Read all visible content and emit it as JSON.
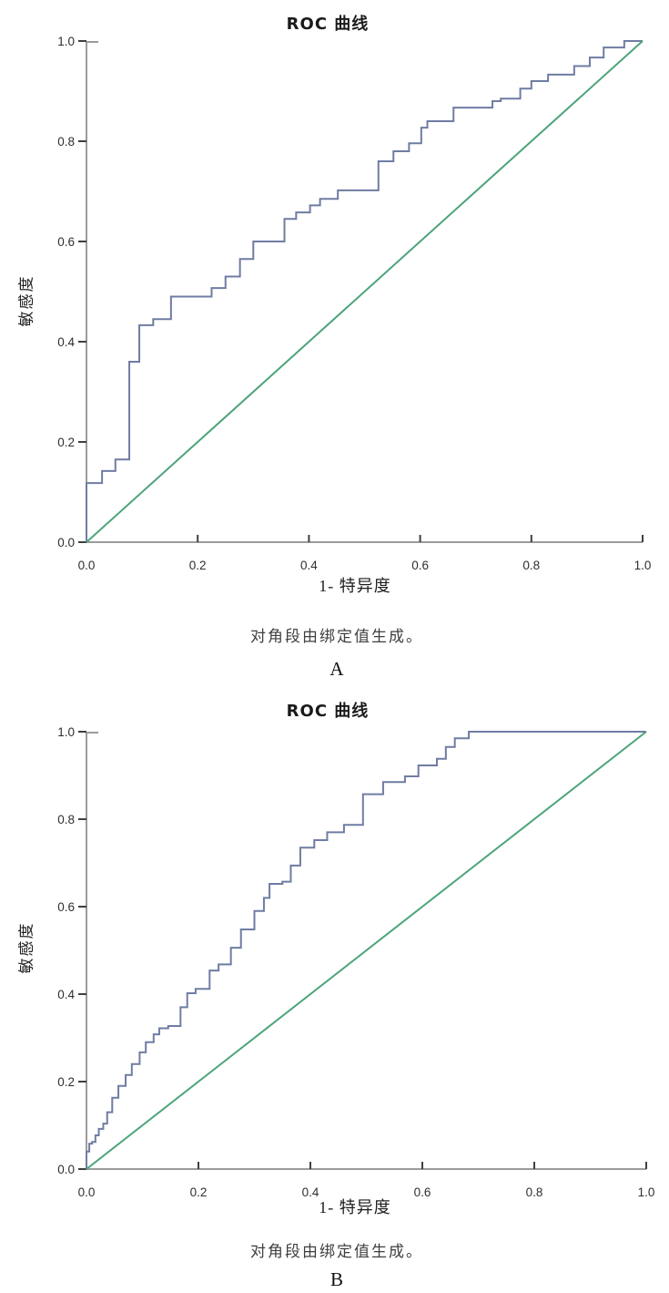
{
  "page": {
    "background": "#ffffff"
  },
  "chart_data": [
    {
      "panel_label": "A",
      "type": "line",
      "title": "ROC 曲线",
      "xlabel": "1- 特异度",
      "ylabel": "敏感度",
      "footnote": "对角段由绑定值生成。",
      "xlim": [
        0,
        1
      ],
      "ylim": [
        0,
        1
      ],
      "grid": false,
      "legend": "none",
      "axis_color": "#9b9b9b",
      "tick_color": "#3f3f3f",
      "tick_label_color": "#2e2e2e",
      "xticks": [
        "0.0",
        "0.2",
        "0.4",
        "0.6",
        "0.8",
        "1.0"
      ],
      "yticks": [
        "0.0",
        "0.2",
        "0.4",
        "0.6",
        "0.8",
        "1.0"
      ],
      "series": [
        {
          "name": "ROC curve",
          "color": "#6f7ca3",
          "style": "step",
          "points": [
            [
              0.0,
              0.0
            ],
            [
              0.005,
              0.118
            ],
            [
              0.028,
              0.118
            ],
            [
              0.028,
              0.142
            ],
            [
              0.052,
              0.142
            ],
            [
              0.052,
              0.165
            ],
            [
              0.077,
              0.165
            ],
            [
              0.077,
              0.36
            ],
            [
              0.095,
              0.36
            ],
            [
              0.095,
              0.433
            ],
            [
              0.12,
              0.433
            ],
            [
              0.12,
              0.445
            ],
            [
              0.152,
              0.445
            ],
            [
              0.152,
              0.49
            ],
            [
              0.225,
              0.49
            ],
            [
              0.225,
              0.507
            ],
            [
              0.25,
              0.507
            ],
            [
              0.25,
              0.53
            ],
            [
              0.276,
              0.53
            ],
            [
              0.276,
              0.565
            ],
            [
              0.3,
              0.565
            ],
            [
              0.3,
              0.6
            ],
            [
              0.356,
              0.6
            ],
            [
              0.356,
              0.645
            ],
            [
              0.377,
              0.645
            ],
            [
              0.377,
              0.658
            ],
            [
              0.402,
              0.658
            ],
            [
              0.402,
              0.672
            ],
            [
              0.42,
              0.672
            ],
            [
              0.42,
              0.685
            ],
            [
              0.452,
              0.685
            ],
            [
              0.452,
              0.702
            ],
            [
              0.525,
              0.702
            ],
            [
              0.525,
              0.76
            ],
            [
              0.552,
              0.76
            ],
            [
              0.552,
              0.78
            ],
            [
              0.58,
              0.78
            ],
            [
              0.58,
              0.796
            ],
            [
              0.602,
              0.796
            ],
            [
              0.602,
              0.827
            ],
            [
              0.613,
              0.827
            ],
            [
              0.613,
              0.84
            ],
            [
              0.66,
              0.84
            ],
            [
              0.66,
              0.867
            ],
            [
              0.73,
              0.867
            ],
            [
              0.745,
              0.88
            ],
            [
              0.78,
              0.885
            ],
            [
              0.78,
              0.905
            ],
            [
              0.8,
              0.905
            ],
            [
              0.8,
              0.92
            ],
            [
              0.83,
              0.92
            ],
            [
              0.83,
              0.933
            ],
            [
              0.877,
              0.933
            ],
            [
              0.877,
              0.95
            ],
            [
              0.905,
              0.95
            ],
            [
              0.905,
              0.967
            ],
            [
              0.93,
              0.967
            ],
            [
              0.93,
              0.987
            ],
            [
              0.967,
              0.987
            ],
            [
              0.967,
              1.0
            ],
            [
              1.0,
              1.0
            ]
          ]
        },
        {
          "name": "reference diagonal",
          "color": "#4ba47a",
          "style": "straight",
          "points": [
            [
              0,
              0
            ],
            [
              1,
              1
            ]
          ]
        }
      ]
    },
    {
      "panel_label": "B",
      "type": "line",
      "title": "ROC 曲线",
      "xlabel": "1- 特异度",
      "ylabel": "敏感度",
      "footnote": "对角段由绑定值生成。",
      "xlim": [
        0,
        1
      ],
      "ylim": [
        0,
        1
      ],
      "grid": false,
      "legend": "none",
      "axis_color": "#9b9b9b",
      "tick_color": "#3f3f3f",
      "tick_label_color": "#2e2e2e",
      "xticks": [
        "0.0",
        "0.2",
        "0.4",
        "0.6",
        "0.8",
        "1.0"
      ],
      "yticks": [
        "0.0",
        "0.2",
        "0.4",
        "0.6",
        "0.8",
        "1.0"
      ],
      "series": [
        {
          "name": "ROC curve",
          "color": "#6f7ca3",
          "style": "step",
          "points": [
            [
              0.0,
              0.0
            ],
            [
              0.005,
              0.04
            ],
            [
              0.01,
              0.058
            ],
            [
              0.016,
              0.062
            ],
            [
              0.022,
              0.077
            ],
            [
              0.03,
              0.092
            ],
            [
              0.037,
              0.104
            ],
            [
              0.046,
              0.13
            ],
            [
              0.057,
              0.163
            ],
            [
              0.07,
              0.19
            ],
            [
              0.081,
              0.215
            ],
            [
              0.095,
              0.24
            ],
            [
              0.106,
              0.267
            ],
            [
              0.12,
              0.29
            ],
            [
              0.13,
              0.308
            ],
            [
              0.146,
              0.322
            ],
            [
              0.168,
              0.327
            ],
            [
              0.18,
              0.37
            ],
            [
              0.195,
              0.402
            ],
            [
              0.22,
              0.412
            ],
            [
              0.236,
              0.454
            ],
            [
              0.258,
              0.468
            ],
            [
              0.276,
              0.506
            ],
            [
              0.3,
              0.548
            ],
            [
              0.317,
              0.59
            ],
            [
              0.327,
              0.62
            ],
            [
              0.35,
              0.652
            ],
            [
              0.365,
              0.657
            ],
            [
              0.382,
              0.694
            ],
            [
              0.407,
              0.735
            ],
            [
              0.43,
              0.752
            ],
            [
              0.46,
              0.77
            ],
            [
              0.494,
              0.787
            ],
            [
              0.494,
              0.846
            ],
            [
              0.53,
              0.857
            ],
            [
              0.569,
              0.885
            ],
            [
              0.593,
              0.898
            ],
            [
              0.626,
              0.923
            ],
            [
              0.642,
              0.938
            ],
            [
              0.658,
              0.965
            ],
            [
              0.683,
              0.985
            ],
            [
              0.704,
              1.0
            ],
            [
              1.0,
              1.0
            ]
          ]
        },
        {
          "name": "reference diagonal",
          "color": "#4ba47a",
          "style": "straight",
          "points": [
            [
              0,
              0
            ],
            [
              1,
              1
            ]
          ]
        }
      ]
    }
  ]
}
